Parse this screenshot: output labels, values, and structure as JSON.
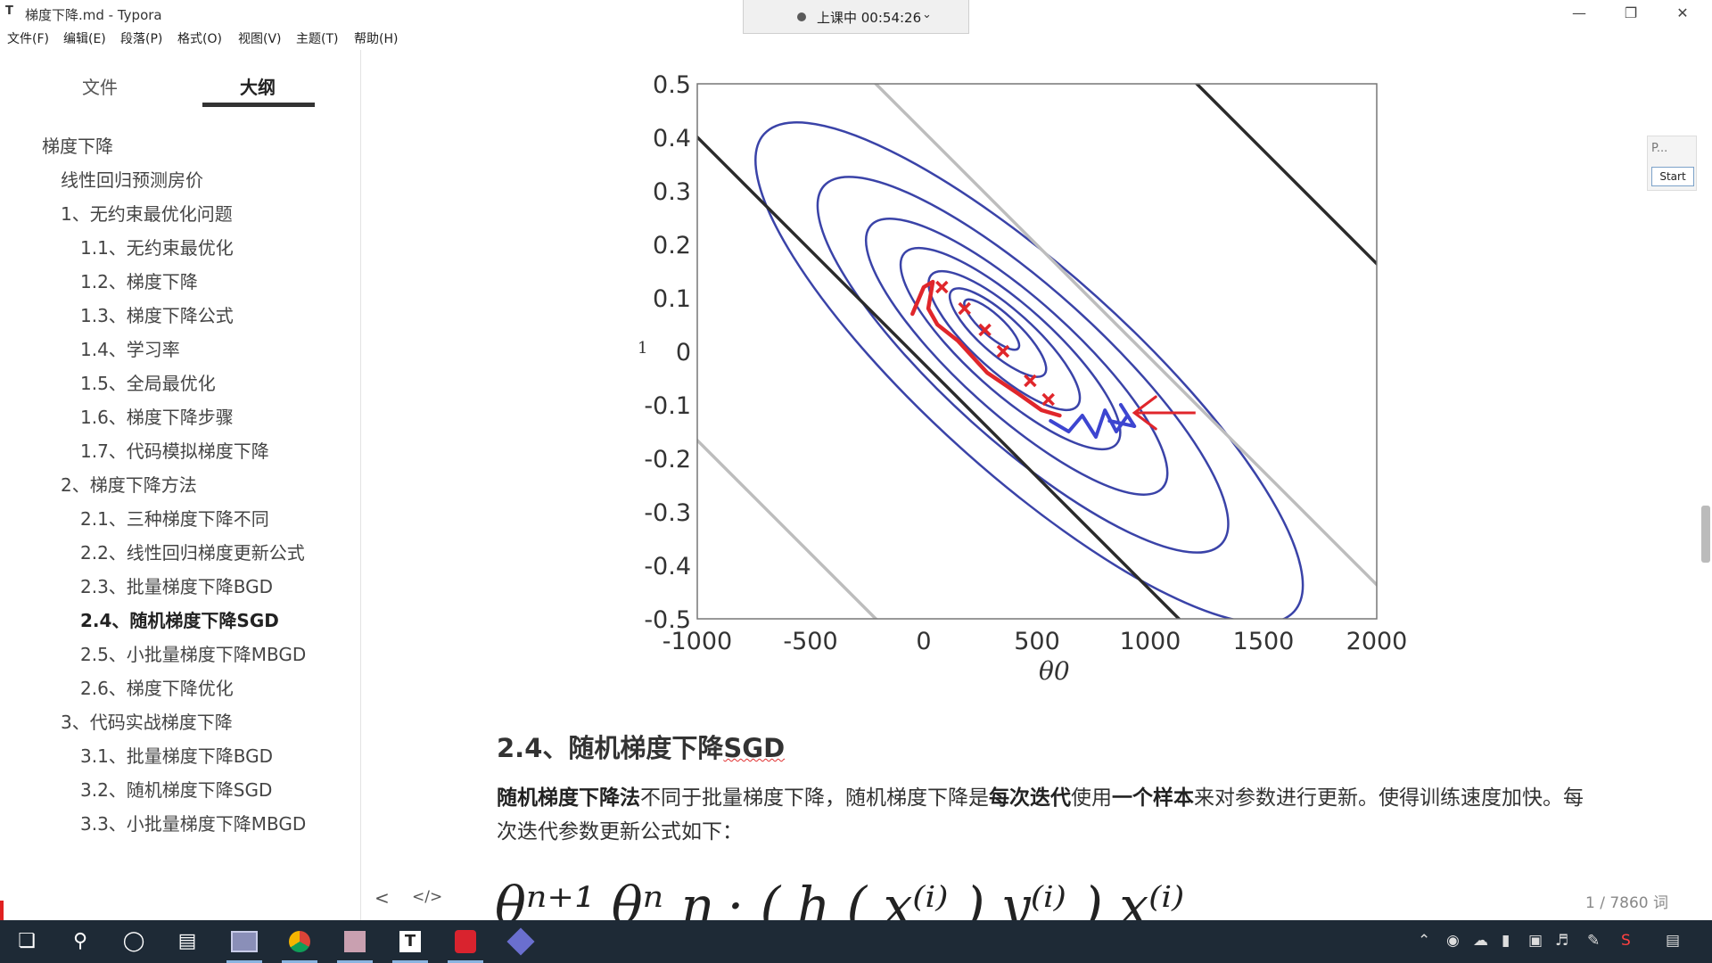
{
  "window": {
    "title": "梯度下降.md - Typora",
    "app_icon": "T",
    "controls": [
      "minimize-icon",
      "restore-icon",
      "close-icon"
    ]
  },
  "recording": {
    "text": "上课中 00:54:26",
    "chevron": "⌄"
  },
  "menu": [
    "文件(F)",
    "编辑(E)",
    "段落(P)",
    "格式(O)",
    "视图(V)",
    "主题(T)",
    "帮助(H)"
  ],
  "sidebar": {
    "tabs": {
      "files": "文件",
      "outline": "大纲"
    },
    "outline": [
      {
        "label": "梯度下降",
        "level": 1
      },
      {
        "label": "线性回归预测房价",
        "level": 2
      },
      {
        "label": "1、无约束最优化问题",
        "level": 2
      },
      {
        "label": "1.1、无约束最优化",
        "level": 3
      },
      {
        "label": "1.2、梯度下降",
        "level": 3
      },
      {
        "label": "1.3、梯度下降公式",
        "level": 3
      },
      {
        "label": "1.4、学习率",
        "level": 3
      },
      {
        "label": "1.5、全局最优化",
        "level": 3
      },
      {
        "label": "1.6、梯度下降步骤",
        "level": 3
      },
      {
        "label": "1.7、代码模拟梯度下降",
        "level": 3
      },
      {
        "label": "2、梯度下降方法",
        "level": 2
      },
      {
        "label": "2.1、三种梯度下降不同",
        "level": 3
      },
      {
        "label": "2.2、线性回归梯度更新公式",
        "level": 3
      },
      {
        "label": "2.3、批量梯度下降BGD",
        "level": 3
      },
      {
        "label": "2.4、随机梯度下降SGD",
        "level": 3,
        "active": true
      },
      {
        "label": "2.5、小批量梯度下降MBGD",
        "level": 3
      },
      {
        "label": "2.6、梯度下降优化",
        "level": 3
      },
      {
        "label": "3、代码实战梯度下降",
        "level": 2
      },
      {
        "label": "3.1、批量梯度下降BGD",
        "level": 3
      },
      {
        "label": "3.2、随机梯度下降SGD",
        "level": 3
      },
      {
        "label": "3.3、小批量梯度下降MBGD",
        "level": 3
      }
    ]
  },
  "document": {
    "heading_prefix": "2.4、随机梯度下降",
    "heading_suffix": "SGD",
    "paragraph": {
      "b1": "随机梯度下降法",
      "t1": "不同于批量梯度下降，随机梯度下降是",
      "b2": "每次迭代",
      "t2": "使用",
      "b3": "一个样本",
      "t3": "来对参数进行更新。使得训练速度加快。每次迭代参数更新公式如下："
    },
    "formula_partial": "θⁿ⁺¹      θⁿ      η · ( h ( x⁽ⁱ⁾ )        y⁽ⁱ⁾ ) x⁽ⁱ⁾"
  },
  "chart_data": {
    "type": "contour",
    "xlabel": "θ0",
    "ylabel": "1",
    "xlim": [
      -1000,
      2000
    ],
    "ylim": [
      -0.5,
      0.5
    ],
    "xticks": [
      "-1000",
      "-500",
      "0",
      "500",
      "1000",
      "1500",
      "2000"
    ],
    "yticks": [
      "0.5",
      "0.4",
      "0.3",
      "0.2",
      "0.1",
      "0",
      "-0.1",
      "-0.2",
      "-0.3",
      "-0.4",
      "-0.5"
    ],
    "contour_center": {
      "x": 300,
      "y": 0.05
    },
    "bgd_points": [
      {
        "x": 80,
        "y": 0.12
      },
      {
        "x": 180,
        "y": 0.08
      },
      {
        "x": 270,
        "y": 0.04
      },
      {
        "x": 350,
        "y": 0.0
      },
      {
        "x": 470,
        "y": -0.055
      },
      {
        "x": 550,
        "y": -0.09
      }
    ],
    "sgd_path": [
      {
        "x": -50,
        "y": 0.07
      },
      {
        "x": 0,
        "y": 0.12
      },
      {
        "x": 40,
        "y": 0.13
      },
      {
        "x": 20,
        "y": 0.08
      },
      {
        "x": 60,
        "y": 0.05
      },
      {
        "x": 150,
        "y": 0.02
      },
      {
        "x": 280,
        "y": -0.04
      },
      {
        "x": 420,
        "y": -0.08
      },
      {
        "x": 520,
        "y": -0.11
      },
      {
        "x": 600,
        "y": -0.12
      }
    ],
    "sgd_noise_path": [
      {
        "x": 560,
        "y": -0.13
      },
      {
        "x": 640,
        "y": -0.15
      },
      {
        "x": 700,
        "y": -0.12
      },
      {
        "x": 760,
        "y": -0.16
      },
      {
        "x": 800,
        "y": -0.11
      },
      {
        "x": 850,
        "y": -0.15
      },
      {
        "x": 900,
        "y": -0.12
      },
      {
        "x": 870,
        "y": -0.1
      },
      {
        "x": 930,
        "y": -0.14
      },
      {
        "x": 820,
        "y": -0.13
      }
    ],
    "annotation_arrow": {
      "from": {
        "x": 1200,
        "y": -0.115
      },
      "to": {
        "x": 930,
        "y": -0.115
      }
    },
    "colors": {
      "contour": "#3a43a8",
      "gray": "#bdbdbd",
      "dark": "#2b2b2b",
      "red": "#e0262b",
      "blue": "#3d45d0"
    }
  },
  "footer": {
    "prev": "<",
    "code": "</>",
    "word_count": "1 / 7860 词"
  },
  "right_widget": {
    "label": "P...",
    "button": "Start"
  },
  "taskbar": {
    "apps": [
      "windows-start-icon",
      "search-icon",
      "cortana-icon",
      "task-view-icon",
      "file-manager-icon",
      "chrome-icon",
      "paint-icon",
      "typora-icon",
      "pdf-icon",
      "video-app-icon"
    ],
    "tray": [
      "chevron-up-icon",
      "app-tray-icon",
      "cloud-icon",
      "battery-icon",
      "network-icon",
      "volume-icon",
      "pen-icon",
      "sogou-icon",
      "notification-icon"
    ]
  }
}
